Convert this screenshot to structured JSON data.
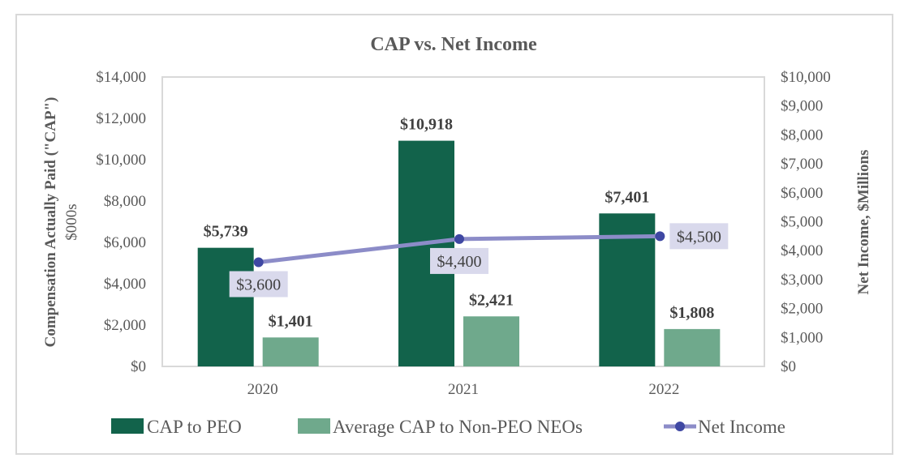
{
  "chart_data": {
    "type": "bar",
    "title": "CAP vs. Net Income",
    "categories": [
      "2020",
      "2021",
      "2022"
    ],
    "series": [
      {
        "name": "CAP to PEO",
        "kind": "bar",
        "axis": "left",
        "color": "#12634b",
        "values": [
          5739,
          10918,
          7401
        ],
        "labels": [
          "$5,739",
          "$10,918",
          "$7,401"
        ]
      },
      {
        "name": "Average CAP to Non-PEO NEOs",
        "kind": "bar",
        "axis": "left",
        "color": "#6fa98c",
        "values": [
          1401,
          2421,
          1808
        ],
        "labels": [
          "$1,401",
          "$2,421",
          "$1,808"
        ]
      },
      {
        "name": "Net Income",
        "kind": "line",
        "axis": "right",
        "color": "#8c8cc8",
        "marker_color": "#3f48a3",
        "label_bg": "#d9d9ec",
        "values": [
          3600,
          4400,
          4500
        ],
        "labels": [
          "$3,600",
          "$4,400",
          "$4,500"
        ]
      }
    ],
    "y_left": {
      "label": "Compensation Actually Paid (\"CAP\")",
      "sublabel": "$000s",
      "ylim": [
        0,
        14000
      ],
      "ticks": [
        0,
        2000,
        4000,
        6000,
        8000,
        10000,
        12000,
        14000
      ],
      "tick_labels": [
        "$0",
        "$2,000",
        "$4,000",
        "$6,000",
        "$8,000",
        "$10,000",
        "$12,000",
        "$14,000"
      ]
    },
    "y_right": {
      "label": "Net Income, $Millions",
      "ylim": [
        0,
        10000
      ],
      "ticks": [
        0,
        1000,
        2000,
        3000,
        4000,
        5000,
        6000,
        7000,
        8000,
        9000,
        10000
      ],
      "tick_labels": [
        "$0",
        "$1,000",
        "$2,000",
        "$3,000",
        "$4,000",
        "$5,000",
        "$6,000",
        "$7,000",
        "$8,000",
        "$9,000",
        "$10,000"
      ]
    },
    "xlabel": "",
    "grid": false,
    "legend": {
      "position": "bottom",
      "entries": [
        "CAP to PEO",
        "Average CAP to Non-PEO NEOs",
        "Net Income"
      ]
    }
  }
}
